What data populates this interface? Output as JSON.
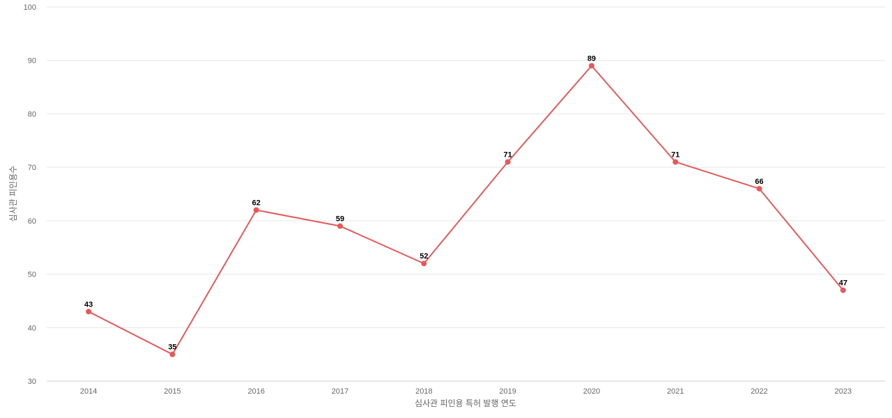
{
  "chart_data": {
    "type": "line",
    "title": "",
    "xlabel": "심사관 피인용 특허 발행 연도",
    "ylabel": "심사관 피인용수",
    "ylim": [
      30,
      100
    ],
    "yticks": [
      30,
      40,
      50,
      60,
      70,
      80,
      90,
      100
    ],
    "grid": true,
    "legend": "none",
    "categories": [
      "2014",
      "2015",
      "2016",
      "2017",
      "2018",
      "2019",
      "2020",
      "2021",
      "2022",
      "2023"
    ],
    "series": [
      {
        "values": [
          43,
          35,
          62,
          59,
          52,
          71,
          89,
          71,
          66,
          47
        ],
        "color": "#e8585a"
      }
    ]
  }
}
